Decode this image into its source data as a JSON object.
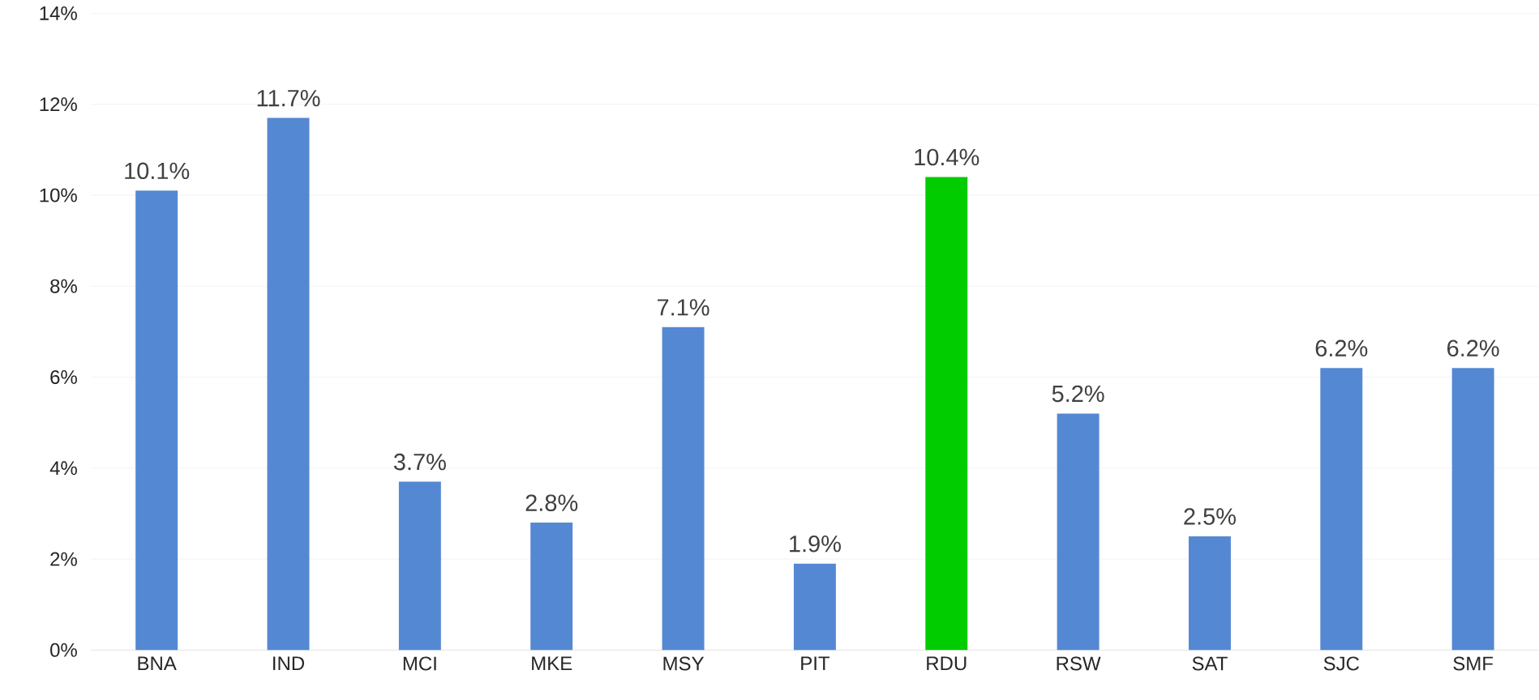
{
  "chart_data": {
    "type": "bar",
    "categories": [
      "BNA",
      "IND",
      "MCI",
      "MKE",
      "MSY",
      "PIT",
      "RDU",
      "RSW",
      "SAT",
      "SJC",
      "SMF"
    ],
    "values": [
      10.1,
      11.7,
      3.7,
      2.8,
      7.1,
      1.9,
      10.4,
      5.2,
      2.5,
      6.2,
      6.2
    ],
    "colors": [
      "#5588d3",
      "#5588d3",
      "#5588d3",
      "#5588d3",
      "#5588d3",
      "#5588d3",
      "#00cc00",
      "#5588d3",
      "#5588d3",
      "#5588d3",
      "#5588d3"
    ],
    "value_labels": [
      "10.1%",
      "11.7%",
      "3.7%",
      "2.8%",
      "7.1%",
      "1.9%",
      "10.4%",
      "5.2%",
      "2.5%",
      "6.2%",
      "6.2%"
    ],
    "ylim": [
      0,
      14
    ],
    "yticks": [
      {
        "value": 0,
        "label": "0%"
      },
      {
        "value": 2,
        "label": "2%"
      },
      {
        "value": 4,
        "label": "4%"
      },
      {
        "value": 6,
        "label": "6%"
      },
      {
        "value": 8,
        "label": "8%"
      },
      {
        "value": 10,
        "label": "10%"
      },
      {
        "value": 12,
        "label": "12%"
      },
      {
        "value": 14,
        "label": "14%"
      }
    ],
    "grid": "y"
  }
}
